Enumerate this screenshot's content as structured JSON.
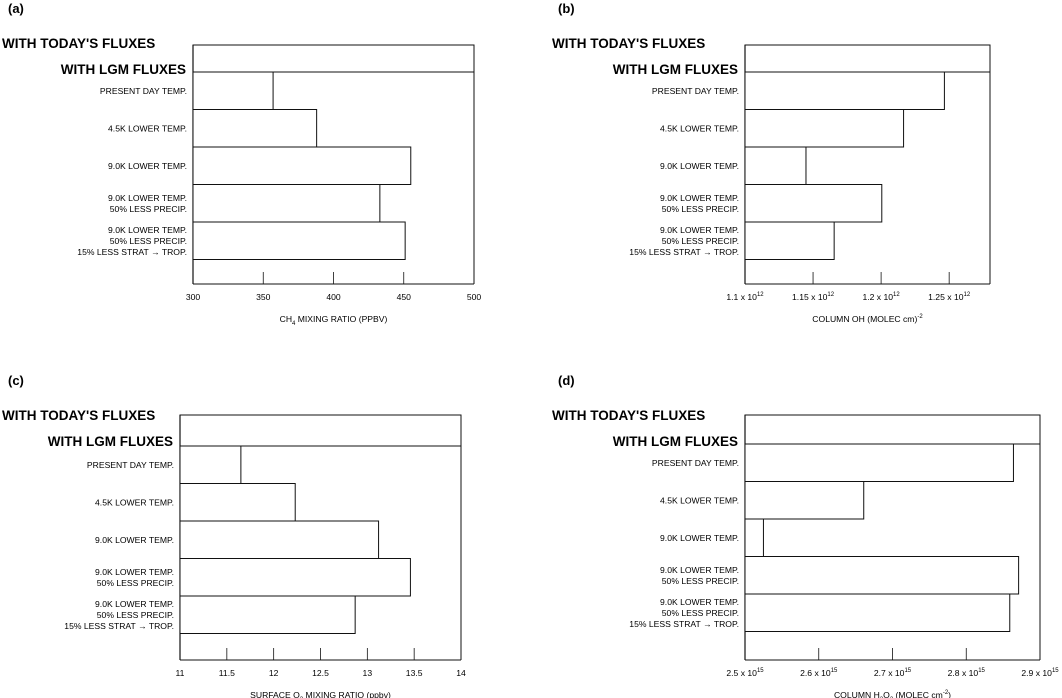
{
  "chart_data": [
    {
      "type": "bar",
      "panel": "(a)",
      "header_lines": [
        "WITH TODAY'S FLUXES",
        "WITH LGM FLUXES"
      ],
      "categories": [
        [
          "PRESENT DAY TEMP."
        ],
        [
          "4.5K LOWER TEMP."
        ],
        [
          "9.0K LOWER TEMP."
        ],
        [
          "9.0K LOWER TEMP.",
          "50% LESS PRECIP."
        ],
        [
          "9.0K LOWER TEMP.",
          "50% LESS PRECIP.",
          "15% LESS STRAT → TROP."
        ]
      ],
      "baseline": 300,
      "today_value": 500,
      "values": [
        357,
        388,
        455,
        433,
        451
      ],
      "xlim": [
        300,
        500
      ],
      "xticks": [
        300,
        350,
        400,
        450,
        500
      ],
      "tick_labels": [
        "300",
        "350",
        "400",
        "450",
        "500"
      ],
      "xlabel": {
        "pre": "CH",
        "sub": "4",
        "post": " MIXING RATIO (PPBV)"
      }
    },
    {
      "type": "bar",
      "panel": "(b)",
      "header_lines": [
        "WITH TODAY'S FLUXES",
        "WITH LGM FLUXES"
      ],
      "categories": [
        [
          "PRESENT DAY TEMP."
        ],
        [
          "4.5K LOWER TEMP."
        ],
        [
          "9.0K LOWER TEMP."
        ],
        [
          "9.0K LOWER TEMP.",
          "50% LESS PRECIP."
        ],
        [
          "9.0K LOWER TEMP.",
          "50% LESS PRECIP.",
          "15% LESS STRAT → TROP."
        ]
      ],
      "baseline": 1100000000000.0,
      "today_value": 1280000000000.0,
      "values": [
        1246500000000.0,
        1216500000000.0,
        1144800000000.0,
        1200500000000.0,
        1165500000000.0
      ],
      "xlim": [
        1100000000000.0,
        1280000000000.0
      ],
      "xticks": [
        1100000000000.0,
        1150000000000.0,
        1200000000000.0,
        1250000000000.0
      ],
      "tick_labels": [
        {
          "mant": "1.1 x 10",
          "exp": "12"
        },
        {
          "mant": "1.15 x 10",
          "exp": "12"
        },
        {
          "mant": "1.2 x 10",
          "exp": "12"
        },
        {
          "mant": "1.25 x 10",
          "exp": "12"
        }
      ],
      "xlabel": {
        "pre": "COLUMN OH (MOLEC cm",
        "sup": "-2",
        "post": ")"
      }
    },
    {
      "type": "bar",
      "panel": "(c)",
      "header_lines": [
        "WITH TODAY'S FLUXES",
        "WITH LGM FLUXES"
      ],
      "categories": [
        [
          "PRESENT DAY TEMP."
        ],
        [
          "4.5K LOWER TEMP."
        ],
        [
          "9.0K LOWER TEMP."
        ],
        [
          "9.0K LOWER TEMP.",
          "50% LESS PRECIP."
        ],
        [
          "9.0K LOWER TEMP.",
          "50% LESS PRECIP.",
          "15% LESS STRAT → TROP."
        ]
      ],
      "baseline": 11,
      "today_value": 14,
      "values": [
        11.65,
        12.23,
        13.12,
        13.46,
        12.87
      ],
      "xlim": [
        11,
        14
      ],
      "xticks": [
        11,
        11.5,
        12,
        12.5,
        13,
        13.5,
        14
      ],
      "tick_labels": [
        "11",
        "11.5",
        "12",
        "12.5",
        "13",
        "13.5",
        "14"
      ],
      "xlabel": {
        "pre": "SURFACE O",
        "sub": "3",
        "post": " MIXING RATIO (ppbv)"
      }
    },
    {
      "type": "bar",
      "panel": "(d)",
      "header_lines": [
        "WITH TODAY'S FLUXES",
        "WITH LGM FLUXES"
      ],
      "categories": [
        [
          "PRESENT DAY TEMP."
        ],
        [
          "4.5K LOWER TEMP."
        ],
        [
          "9.0K LOWER TEMP."
        ],
        [
          "9.0K LOWER TEMP.",
          "50% LESS PRECIP."
        ],
        [
          "9.0K LOWER TEMP.",
          "50% LESS PRECIP.",
          "15% LESS STRAT → TROP."
        ]
      ],
      "baseline": 2500000000000000.0,
      "today_value": 2900000000000000.0,
      "values": [
        2864000000000000.0,
        2661000000000000.0,
        2525000000000000.0,
        2871000000000000.0,
        2859000000000000.0
      ],
      "xlim": [
        2500000000000000.0,
        2900000000000000.0
      ],
      "xticks": [
        2500000000000000.0,
        2600000000000000.0,
        2700000000000000.0,
        2800000000000000.0,
        2900000000000000.0
      ],
      "tick_labels": [
        {
          "mant": "2.5 x 10",
          "exp": "15"
        },
        {
          "mant": "2.6 x 10",
          "exp": "15"
        },
        {
          "mant": "2.7 x 10",
          "exp": "15"
        },
        {
          "mant": "2.8 x 10",
          "exp": "15"
        },
        {
          "mant": "2.9 x 10",
          "exp": "15"
        }
      ],
      "xlabel": {
        "pre": "COLUMN H",
        "sub": "2",
        "mid": "O",
        "sub2": "2",
        "post": "  (MOLEC cm",
        "sup": "-2",
        "post2": ")"
      }
    }
  ]
}
